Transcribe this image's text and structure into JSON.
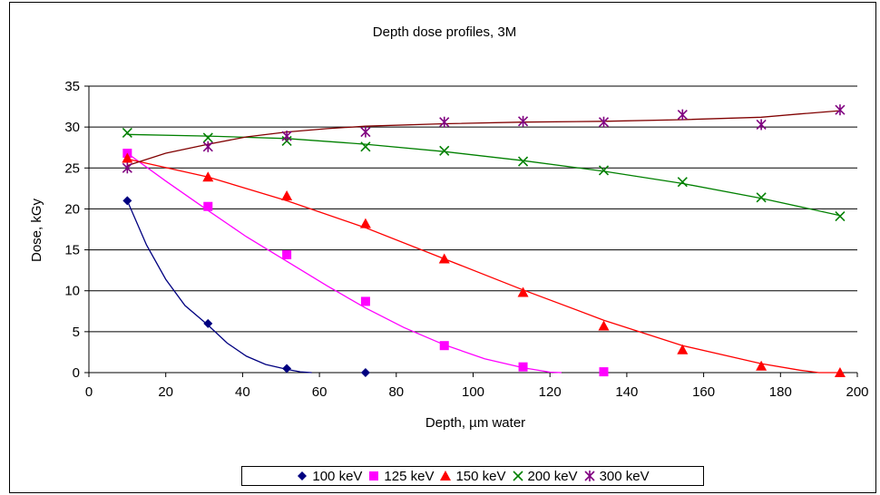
{
  "chart_data": {
    "type": "scatter",
    "title": "Depth dose profiles, 3M",
    "xlabel": "Depth, µm water",
    "ylabel": "Dose, kGy",
    "xlim": [
      0,
      200
    ],
    "ylim": [
      0,
      35
    ],
    "xticks": [
      0,
      20,
      40,
      60,
      80,
      100,
      120,
      140,
      160,
      180,
      200
    ],
    "yticks": [
      0,
      5,
      10,
      15,
      20,
      25,
      30,
      35
    ],
    "grid": "horizontal",
    "legend_position": "bottom",
    "series": [
      {
        "name": "100 keV",
        "color": "#000080",
        "marker": "diamond",
        "x": [
          10,
          31,
          51.5,
          72
        ],
        "y": [
          21,
          6,
          0.5,
          0
        ],
        "trend": [
          [
            10,
            21
          ],
          [
            15,
            15.6
          ],
          [
            20,
            11.4
          ],
          [
            25,
            8.2
          ],
          [
            31,
            5.8
          ],
          [
            36,
            3.6
          ],
          [
            41,
            2.0
          ],
          [
            46,
            1.0
          ],
          [
            51.5,
            0.4
          ],
          [
            55,
            0.1
          ],
          [
            58,
            0
          ]
        ]
      },
      {
        "name": "125 keV",
        "color": "#ff00ff",
        "marker": "square",
        "x": [
          10,
          31,
          51.5,
          72,
          92.5,
          113,
          134
        ],
        "y": [
          26.8,
          20.3,
          14.4,
          8.7,
          3.3,
          0.7,
          0.1
        ],
        "trend": [
          [
            10,
            26.8
          ],
          [
            20,
            23.4
          ],
          [
            31,
            19.8
          ],
          [
            41,
            16.6
          ],
          [
            51.5,
            13.6
          ],
          [
            62,
            10.6
          ],
          [
            72,
            7.9
          ],
          [
            82,
            5.5
          ],
          [
            92.5,
            3.4
          ],
          [
            103,
            1.7
          ],
          [
            113,
            0.6
          ],
          [
            120,
            0.05
          ],
          [
            123,
            0
          ]
        ]
      },
      {
        "name": "150 keV",
        "color": "#ff0000",
        "marker": "triangle",
        "x": [
          10,
          31,
          51.5,
          72,
          92.5,
          113,
          134,
          154.5,
          175,
          195.5
        ],
        "y": [
          26.2,
          23.9,
          21.6,
          18.2,
          13.9,
          9.8,
          5.7,
          2.8,
          0.8,
          0
        ],
        "trend": [
          [
            10,
            26.1
          ],
          [
            31,
            23.9
          ],
          [
            51.5,
            21.0
          ],
          [
            72,
            17.7
          ],
          [
            92.5,
            13.9
          ],
          [
            113,
            10.1
          ],
          [
            134,
            6.4
          ],
          [
            154.5,
            3.3
          ],
          [
            175,
            1.1
          ],
          [
            185,
            0.3
          ],
          [
            190,
            0
          ],
          [
            195.5,
            0
          ]
        ]
      },
      {
        "name": "200 keV",
        "color": "#008000",
        "marker": "x",
        "x": [
          10,
          31,
          51.5,
          72,
          92.5,
          113,
          134,
          154.5,
          175,
          195.5
        ],
        "y": [
          29.3,
          28.7,
          28.3,
          27.6,
          27.1,
          25.8,
          24.7,
          23.3,
          21.4,
          19.1
        ],
        "trend": [
          [
            10,
            29.1
          ],
          [
            31,
            28.9
          ],
          [
            51.5,
            28.6
          ],
          [
            72,
            27.9
          ],
          [
            92.5,
            27.0
          ],
          [
            113,
            25.9
          ],
          [
            134,
            24.6
          ],
          [
            154.5,
            23.1
          ],
          [
            175,
            21.3
          ],
          [
            195.5,
            19.2
          ]
        ]
      },
      {
        "name": "300 keV",
        "color": "#800080",
        "marker": "star",
        "x": [
          10,
          31,
          51.5,
          72,
          92.5,
          113,
          134,
          154.5,
          175,
          195.5
        ],
        "y": [
          25,
          27.6,
          28.9,
          29.4,
          30.6,
          30.7,
          30.6,
          31.5,
          30.3,
          32.1
        ],
        "trend": [
          [
            10,
            25.3
          ],
          [
            20,
            26.8
          ],
          [
            31,
            27.9
          ],
          [
            41,
            28.8
          ],
          [
            51.5,
            29.4
          ],
          [
            62,
            29.8
          ],
          [
            72,
            30.1
          ],
          [
            92.5,
            30.4
          ],
          [
            113,
            30.6
          ],
          [
            134,
            30.7
          ],
          [
            154.5,
            30.9
          ],
          [
            175,
            31.2
          ],
          [
            185,
            31.6
          ],
          [
            195.5,
            32.0
          ]
        ],
        "trend_color": "#800000"
      }
    ]
  }
}
